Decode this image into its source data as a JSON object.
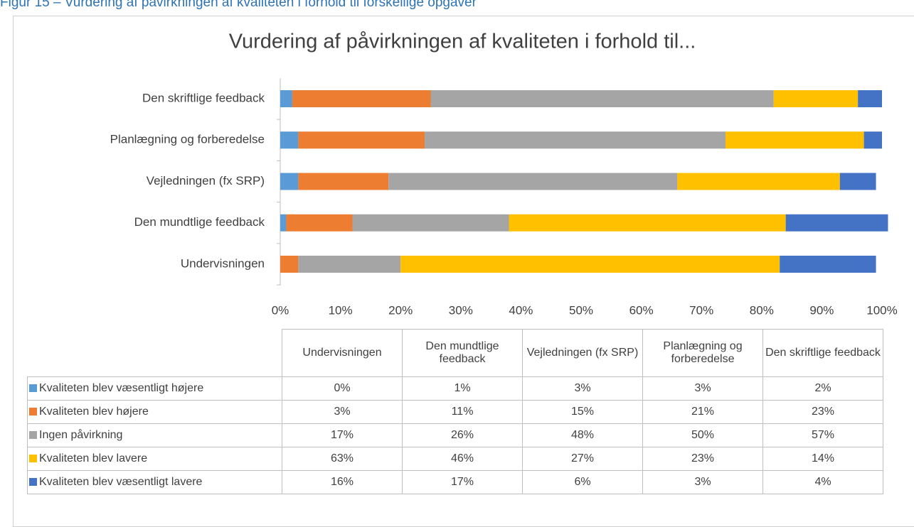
{
  "caption": "Figur 15 – Vurdering af påvirkningen af kvaliteten i forhold til forskellige opgaver",
  "chart_data": {
    "type": "bar",
    "orientation": "horizontal",
    "stacked": true,
    "title": "Vurdering af påvirkningen af kvaliteten i forhold til...",
    "categories": [
      "Undervisningen",
      "Den mundtlige feedback",
      "Vejledningen (fx SRP)",
      "Planlægning og forberedelse",
      "Den skriftlige feedback"
    ],
    "series": [
      {
        "name": "Kvaliteten blev væsentligt højere",
        "color": "#5b9bd5",
        "values": [
          0,
          1,
          3,
          3,
          2
        ],
        "value_labels": [
          "0%",
          "1%",
          "3%",
          "3%",
          "2%"
        ]
      },
      {
        "name": "Kvaliteten blev højere",
        "color": "#ed7d31",
        "values": [
          3,
          11,
          15,
          21,
          23
        ],
        "value_labels": [
          "3%",
          "11%",
          "15%",
          "21%",
          "23%"
        ]
      },
      {
        "name": "Ingen påvirkning",
        "color": "#a5a5a5",
        "values": [
          17,
          26,
          48,
          50,
          57
        ],
        "value_labels": [
          "17%",
          "26%",
          "48%",
          "50%",
          "57%"
        ]
      },
      {
        "name": "Kvaliteten blev lavere",
        "color": "#ffc000",
        "values": [
          63,
          46,
          27,
          23,
          14
        ],
        "value_labels": [
          "63%",
          "46%",
          "27%",
          "23%",
          "14%"
        ]
      },
      {
        "name": "Kvaliteten blev væsentligt lavere",
        "color": "#4472c4",
        "values": [
          16,
          17,
          6,
          3,
          4
        ],
        "value_labels": [
          "16%",
          "17%",
          "6%",
          "3%",
          "4%"
        ]
      }
    ],
    "xlim": [
      0,
      100
    ],
    "xticks": [
      {
        "value": 0,
        "label": "0%"
      },
      {
        "value": 10,
        "label": "10%"
      },
      {
        "value": 20,
        "label": "20%"
      },
      {
        "value": 30,
        "label": "30%"
      },
      {
        "value": 40,
        "label": "40%"
      },
      {
        "value": 50,
        "label": "50%"
      },
      {
        "value": 60,
        "label": "60%"
      },
      {
        "value": 70,
        "label": "70%"
      },
      {
        "value": 80,
        "label": "80%"
      },
      {
        "value": 90,
        "label": "90%"
      },
      {
        "value": 100,
        "label": "100%"
      }
    ],
    "grid": false,
    "legend": "table"
  }
}
